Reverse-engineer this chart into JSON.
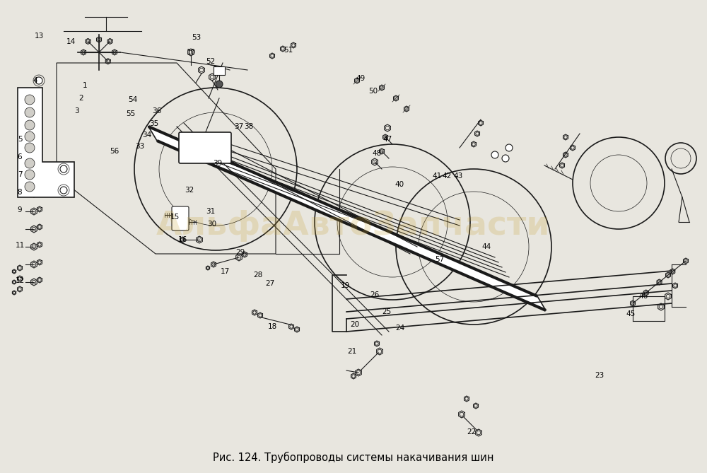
{
  "title": "Рис. 124. Трубопроводы системы накачивания шин",
  "title_fontsize": 10.5,
  "bg_color": "#e8e6df",
  "fig_width": 10.0,
  "fig_height": 6.69,
  "dpi": 100,
  "line_color": "#1a1a1a",
  "watermark_color": "#c8a030",
  "watermark_alpha": 0.22,
  "watermark_text": "АльфаАвтоЗапчасти",
  "caption": "Рис. 124. Трубопроводы системы накачивания шин",
  "label_fontsize": 7.5
}
